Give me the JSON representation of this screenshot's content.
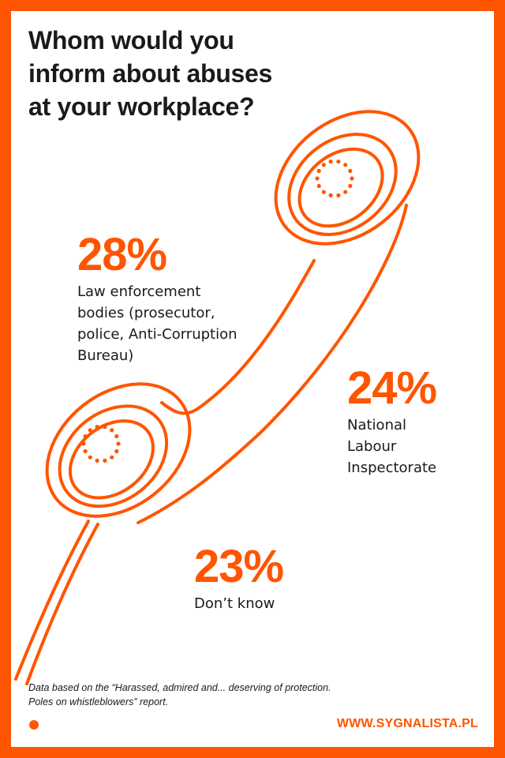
{
  "title": "Whom would you\ninform about abuses\nat your workplace?",
  "stats": [
    {
      "value": "28%",
      "label": "Law enforcement\nbodies (prosecutor,\npolice, Anti-Corruption\nBureau)"
    },
    {
      "value": "24%",
      "label": "National\nLabour\nInspectorate"
    },
    {
      "value": "23%",
      "label": "Don’t know"
    }
  ],
  "footnote": "Data based on the “Harassed, admired and... deserving of protection.\nPoles on whistleblowers” report.",
  "website": "WWW.SYGNALISTA.PL",
  "colors": {
    "accent": "#ff5500",
    "text": "#1a1a1a",
    "background": "#ffffff"
  },
  "icons": {
    "illustration": "telephone-handset-icon",
    "bullet": "dot-icon"
  }
}
